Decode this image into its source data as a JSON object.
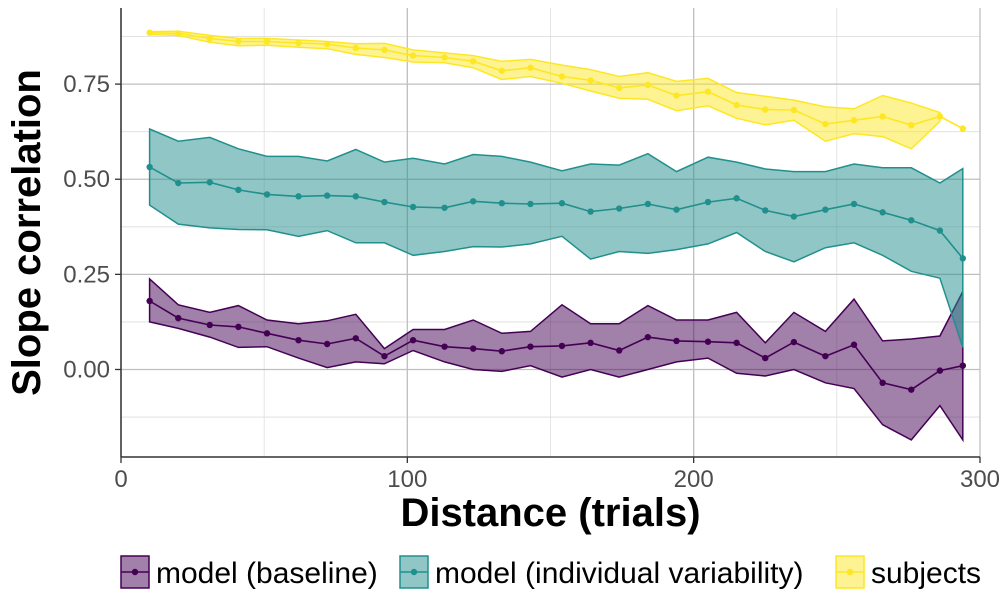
{
  "chart_data": {
    "type": "line",
    "xlabel": "Distance (trials)",
    "ylabel": "Slope correlation",
    "xlim": [
      0,
      300
    ],
    "ylim": [
      -0.23,
      0.95
    ],
    "x_ticks": [
      0,
      100,
      200,
      300
    ],
    "x_tick_labels": [
      "0",
      "100",
      "200",
      "300"
    ],
    "y_ticks": [
      0,
      0.25,
      0.5,
      0.75
    ],
    "y_tick_labels": [
      "0.00",
      "0.25",
      "0.50",
      "0.75"
    ],
    "grid": true,
    "legend_position": "bottom",
    "x": [
      10,
      20,
      31,
      41,
      51,
      62,
      72,
      82,
      92,
      102,
      113,
      123,
      133,
      143,
      154,
      164,
      174,
      184,
      194,
      205,
      215,
      225,
      235,
      246,
      256,
      266,
      276,
      286,
      294
    ],
    "series": [
      {
        "name": "model (baseline)",
        "color": "#440154",
        "fill": "#8a6a95",
        "values": [
          0.18,
          0.135,
          0.117,
          0.112,
          0.095,
          0.077,
          0.067,
          0.082,
          0.035,
          0.077,
          0.06,
          0.055,
          0.048,
          0.06,
          0.062,
          0.07,
          0.05,
          0.085,
          0.075,
          0.073,
          0.07,
          0.03,
          0.072,
          0.035,
          0.065,
          -0.035,
          -0.053,
          -0.003,
          0.01
        ],
        "upper": [
          0.238,
          0.17,
          0.15,
          0.168,
          0.13,
          0.12,
          0.128,
          0.145,
          0.055,
          0.105,
          0.105,
          0.13,
          0.095,
          0.1,
          0.17,
          0.12,
          0.12,
          0.168,
          0.13,
          0.13,
          0.15,
          0.07,
          0.15,
          0.1,
          0.185,
          0.075,
          0.08,
          0.088,
          0.205
        ],
        "lower": [
          0.125,
          0.108,
          0.085,
          0.058,
          0.06,
          0.03,
          0.005,
          0.02,
          0.015,
          0.05,
          0.02,
          0.0,
          -0.005,
          0.01,
          -0.02,
          0.0,
          -0.02,
          0.0,
          0.02,
          0.03,
          -0.01,
          -0.017,
          0.0,
          -0.035,
          -0.05,
          -0.145,
          -0.185,
          -0.095,
          -0.185
        ]
      },
      {
        "name": "model (individual variability)",
        "color": "#21908d",
        "fill": "#8cbfbb",
        "values": [
          0.532,
          0.49,
          0.492,
          0.472,
          0.46,
          0.455,
          0.457,
          0.455,
          0.44,
          0.427,
          0.425,
          0.442,
          0.437,
          0.435,
          0.437,
          0.415,
          0.423,
          0.435,
          0.42,
          0.44,
          0.45,
          0.418,
          0.402,
          0.42,
          0.435,
          0.413,
          0.392,
          0.365,
          0.292
        ],
        "upper": [
          0.632,
          0.6,
          0.61,
          0.58,
          0.56,
          0.56,
          0.548,
          0.578,
          0.545,
          0.555,
          0.54,
          0.565,
          0.56,
          0.545,
          0.522,
          0.54,
          0.537,
          0.567,
          0.52,
          0.558,
          0.545,
          0.527,
          0.52,
          0.52,
          0.54,
          0.53,
          0.53,
          0.49,
          0.528
        ],
        "lower": [
          0.432,
          0.382,
          0.372,
          0.368,
          0.367,
          0.35,
          0.365,
          0.333,
          0.333,
          0.3,
          0.31,
          0.323,
          0.322,
          0.33,
          0.35,
          0.29,
          0.31,
          0.305,
          0.315,
          0.33,
          0.36,
          0.31,
          0.283,
          0.32,
          0.333,
          0.3,
          0.258,
          0.24,
          0.058
        ]
      },
      {
        "name": "subjects",
        "color": "#fde725",
        "fill": "#fbe97f",
        "values": [
          0.885,
          0.883,
          0.87,
          0.862,
          0.862,
          0.858,
          0.855,
          0.845,
          0.84,
          0.825,
          0.82,
          0.81,
          0.785,
          0.793,
          0.77,
          0.76,
          0.74,
          0.748,
          0.72,
          0.73,
          0.695,
          0.683,
          0.682,
          0.645,
          0.655,
          0.665,
          0.642,
          0.665,
          0.633
        ],
        "upper": [
          0.888,
          0.889,
          0.878,
          0.87,
          0.87,
          0.866,
          0.862,
          0.856,
          0.857,
          0.84,
          0.832,
          0.825,
          0.81,
          0.815,
          0.8,
          0.788,
          0.77,
          0.78,
          0.757,
          0.765,
          0.728,
          0.718,
          0.708,
          0.69,
          0.685,
          0.72,
          0.7,
          0.675,
          null
        ],
        "lower": [
          0.88,
          0.878,
          0.86,
          0.851,
          0.852,
          0.847,
          0.843,
          0.828,
          0.82,
          0.808,
          0.806,
          0.793,
          0.762,
          0.77,
          0.752,
          0.732,
          0.713,
          0.71,
          0.68,
          0.693,
          0.66,
          0.643,
          0.655,
          0.6,
          0.62,
          0.612,
          0.58,
          0.652,
          null
        ]
      }
    ]
  }
}
